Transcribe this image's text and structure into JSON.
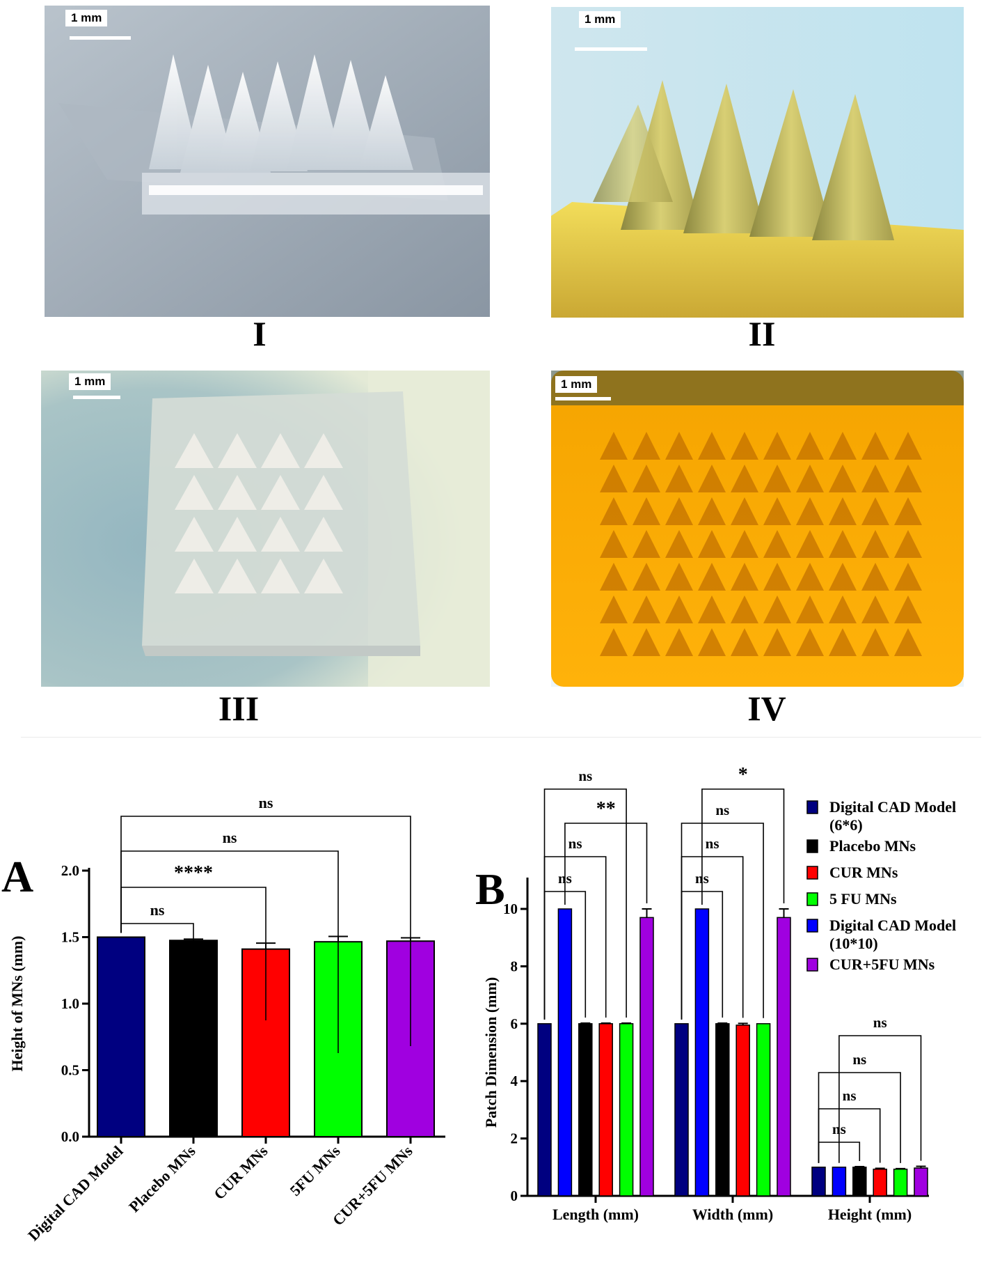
{
  "photos": [
    {
      "label": "I",
      "scale": "1 mm",
      "icon": "microneedle-side-view-photo"
    },
    {
      "label": "II",
      "scale": "1 mm",
      "icon": "microneedle-side-view-photo"
    },
    {
      "label": "III",
      "scale": "1 mm",
      "icon": "microneedle-array-top-view-photo"
    },
    {
      "label": "IV",
      "scale": "1 mm",
      "icon": "microneedle-array-top-view-photo"
    }
  ],
  "panels": {
    "a": "A",
    "b": "B"
  },
  "chart_data": [
    {
      "type": "bar",
      "panel": "A",
      "ylabel": "Height of MNs (mm)",
      "ylim": [
        0,
        2.0
      ],
      "yticks": [
        "0.0",
        "0.5",
        "1.0",
        "1.5",
        "2.0"
      ],
      "categories": [
        "Digital CAD Model",
        "Placebo MNs",
        "CUR MNs",
        "5FU MNs",
        "CUR+5FU MNs"
      ],
      "values": [
        1.5,
        1.475,
        1.41,
        1.465,
        1.47
      ],
      "errors": [
        0,
        0.01,
        0.045,
        0.04,
        0.025
      ],
      "colors": [
        "#000080",
        "#000000",
        "#ff0000",
        "#00ff00",
        "#a000e0"
      ],
      "comparisons": [
        {
          "from": 0,
          "to": 1,
          "label": "ns"
        },
        {
          "from": 0,
          "to": 2,
          "label": "****"
        },
        {
          "from": 0,
          "to": 3,
          "label": "ns"
        },
        {
          "from": 0,
          "to": 4,
          "label": "ns"
        }
      ],
      "grid": false
    },
    {
      "type": "bar",
      "panel": "B",
      "ylabel": "Patch Dimension (mm)",
      "ylim": [
        0,
        10
      ],
      "yticks": [
        "0",
        "2",
        "4",
        "6",
        "8",
        "10"
      ],
      "categories": [
        "Length (mm)",
        "Width (mm)",
        "Height (mm)"
      ],
      "series": [
        {
          "name": "Digital CAD Model (6*6)",
          "color": "#000080",
          "values": [
            6,
            6,
            1
          ],
          "errors": [
            0,
            0,
            0
          ]
        },
        {
          "name": "Digital CAD Model (10*10)",
          "color": "#0000ff",
          "values": [
            10,
            10,
            1
          ],
          "errors": [
            0,
            0,
            0
          ]
        },
        {
          "name": "Placebo MNs",
          "color": "#000000",
          "values": [
            6,
            6,
            1
          ],
          "errors": [
            0.02,
            0.02,
            0.02
          ]
        },
        {
          "name": "CUR MNs",
          "color": "#ff0000",
          "values": [
            6,
            5.95,
            0.93
          ],
          "errors": [
            0.02,
            0.06,
            0.03
          ]
        },
        {
          "name": "5 FU MNs",
          "color": "#00ff00",
          "values": [
            6,
            6,
            0.93
          ],
          "errors": [
            0.02,
            0,
            0.02
          ]
        },
        {
          "name": "CUR+5FU MNs",
          "color": "#a000e0",
          "values": [
            9.7,
            9.7,
            0.97
          ],
          "errors": [
            0.3,
            0.3,
            0.06
          ]
        }
      ],
      "legend": {
        "placement": "right",
        "entries": [
          {
            "lines": [
              "Digital CAD Model",
              "(6*6)"
            ],
            "color": "#000080"
          },
          {
            "lines": [
              "Placebo MNs"
            ],
            "color": "#000000"
          },
          {
            "lines": [
              "CUR MNs"
            ],
            "color": "#ff0000"
          },
          {
            "lines": [
              "5 FU MNs"
            ],
            "color": "#00ff00"
          },
          {
            "lines": [
              "Digital CAD Model",
              "(10*10)"
            ],
            "color": "#0000ff"
          },
          {
            "lines": [
              "CUR+5FU MNs"
            ],
            "color": "#a000e0"
          }
        ]
      },
      "comparisons": [
        {
          "group": 0,
          "from": 0,
          "to": 2,
          "label": "ns"
        },
        {
          "group": 0,
          "from": 0,
          "to": 3,
          "label": "ns"
        },
        {
          "group": 0,
          "from": 1,
          "to": 5,
          "label": "**"
        },
        {
          "group": 0,
          "from": 0,
          "to": 4,
          "label": "ns"
        },
        {
          "group": 1,
          "from": 0,
          "to": 2,
          "label": "ns"
        },
        {
          "group": 1,
          "from": 0,
          "to": 3,
          "label": "ns"
        },
        {
          "group": 1,
          "from": 0,
          "to": 4,
          "label": "ns"
        },
        {
          "group": 1,
          "from": 1,
          "to": 5,
          "label": "*"
        },
        {
          "group": 2,
          "from": 0,
          "to": 2,
          "label": "ns"
        },
        {
          "group": 2,
          "from": 0,
          "to": 3,
          "label": "ns"
        },
        {
          "group": 2,
          "from": 0,
          "to": 4,
          "label": "ns"
        },
        {
          "group": 2,
          "from": 1,
          "to": 5,
          "label": "ns"
        }
      ],
      "grid": false
    }
  ]
}
